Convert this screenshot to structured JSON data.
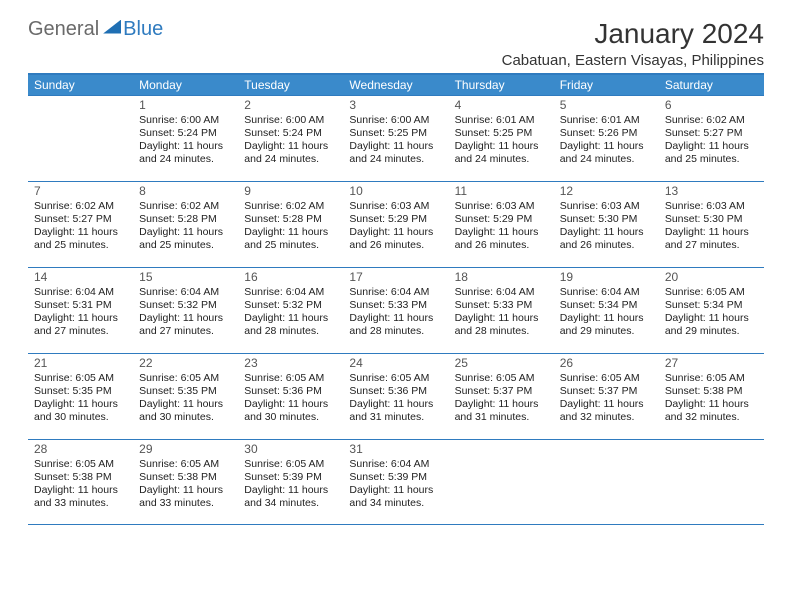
{
  "logo": {
    "part1": "General",
    "part2": "Blue"
  },
  "title": "January 2024",
  "location": "Cabatuan, Eastern Visayas, Philippines",
  "colors": {
    "header_bg": "#3a8acb",
    "border": "#2f7bbf",
    "logo_gray": "#6a6a6a",
    "logo_blue": "#2f7bbf",
    "text": "#222222"
  },
  "dow": [
    "Sunday",
    "Monday",
    "Tuesday",
    "Wednesday",
    "Thursday",
    "Friday",
    "Saturday"
  ],
  "weeks": [
    [
      {
        "n": "",
        "sr": "",
        "ss": "",
        "d1": "",
        "d2": ""
      },
      {
        "n": "1",
        "sr": "Sunrise: 6:00 AM",
        "ss": "Sunset: 5:24 PM",
        "d1": "Daylight: 11 hours",
        "d2": "and 24 minutes."
      },
      {
        "n": "2",
        "sr": "Sunrise: 6:00 AM",
        "ss": "Sunset: 5:24 PM",
        "d1": "Daylight: 11 hours",
        "d2": "and 24 minutes."
      },
      {
        "n": "3",
        "sr": "Sunrise: 6:00 AM",
        "ss": "Sunset: 5:25 PM",
        "d1": "Daylight: 11 hours",
        "d2": "and 24 minutes."
      },
      {
        "n": "4",
        "sr": "Sunrise: 6:01 AM",
        "ss": "Sunset: 5:25 PM",
        "d1": "Daylight: 11 hours",
        "d2": "and 24 minutes."
      },
      {
        "n": "5",
        "sr": "Sunrise: 6:01 AM",
        "ss": "Sunset: 5:26 PM",
        "d1": "Daylight: 11 hours",
        "d2": "and 24 minutes."
      },
      {
        "n": "6",
        "sr": "Sunrise: 6:02 AM",
        "ss": "Sunset: 5:27 PM",
        "d1": "Daylight: 11 hours",
        "d2": "and 25 minutes."
      }
    ],
    [
      {
        "n": "7",
        "sr": "Sunrise: 6:02 AM",
        "ss": "Sunset: 5:27 PM",
        "d1": "Daylight: 11 hours",
        "d2": "and 25 minutes."
      },
      {
        "n": "8",
        "sr": "Sunrise: 6:02 AM",
        "ss": "Sunset: 5:28 PM",
        "d1": "Daylight: 11 hours",
        "d2": "and 25 minutes."
      },
      {
        "n": "9",
        "sr": "Sunrise: 6:02 AM",
        "ss": "Sunset: 5:28 PM",
        "d1": "Daylight: 11 hours",
        "d2": "and 25 minutes."
      },
      {
        "n": "10",
        "sr": "Sunrise: 6:03 AM",
        "ss": "Sunset: 5:29 PM",
        "d1": "Daylight: 11 hours",
        "d2": "and 26 minutes."
      },
      {
        "n": "11",
        "sr": "Sunrise: 6:03 AM",
        "ss": "Sunset: 5:29 PM",
        "d1": "Daylight: 11 hours",
        "d2": "and 26 minutes."
      },
      {
        "n": "12",
        "sr": "Sunrise: 6:03 AM",
        "ss": "Sunset: 5:30 PM",
        "d1": "Daylight: 11 hours",
        "d2": "and 26 minutes."
      },
      {
        "n": "13",
        "sr": "Sunrise: 6:03 AM",
        "ss": "Sunset: 5:30 PM",
        "d1": "Daylight: 11 hours",
        "d2": "and 27 minutes."
      }
    ],
    [
      {
        "n": "14",
        "sr": "Sunrise: 6:04 AM",
        "ss": "Sunset: 5:31 PM",
        "d1": "Daylight: 11 hours",
        "d2": "and 27 minutes."
      },
      {
        "n": "15",
        "sr": "Sunrise: 6:04 AM",
        "ss": "Sunset: 5:32 PM",
        "d1": "Daylight: 11 hours",
        "d2": "and 27 minutes."
      },
      {
        "n": "16",
        "sr": "Sunrise: 6:04 AM",
        "ss": "Sunset: 5:32 PM",
        "d1": "Daylight: 11 hours",
        "d2": "and 28 minutes."
      },
      {
        "n": "17",
        "sr": "Sunrise: 6:04 AM",
        "ss": "Sunset: 5:33 PM",
        "d1": "Daylight: 11 hours",
        "d2": "and 28 minutes."
      },
      {
        "n": "18",
        "sr": "Sunrise: 6:04 AM",
        "ss": "Sunset: 5:33 PM",
        "d1": "Daylight: 11 hours",
        "d2": "and 28 minutes."
      },
      {
        "n": "19",
        "sr": "Sunrise: 6:04 AM",
        "ss": "Sunset: 5:34 PM",
        "d1": "Daylight: 11 hours",
        "d2": "and 29 minutes."
      },
      {
        "n": "20",
        "sr": "Sunrise: 6:05 AM",
        "ss": "Sunset: 5:34 PM",
        "d1": "Daylight: 11 hours",
        "d2": "and 29 minutes."
      }
    ],
    [
      {
        "n": "21",
        "sr": "Sunrise: 6:05 AM",
        "ss": "Sunset: 5:35 PM",
        "d1": "Daylight: 11 hours",
        "d2": "and 30 minutes."
      },
      {
        "n": "22",
        "sr": "Sunrise: 6:05 AM",
        "ss": "Sunset: 5:35 PM",
        "d1": "Daylight: 11 hours",
        "d2": "and 30 minutes."
      },
      {
        "n": "23",
        "sr": "Sunrise: 6:05 AM",
        "ss": "Sunset: 5:36 PM",
        "d1": "Daylight: 11 hours",
        "d2": "and 30 minutes."
      },
      {
        "n": "24",
        "sr": "Sunrise: 6:05 AM",
        "ss": "Sunset: 5:36 PM",
        "d1": "Daylight: 11 hours",
        "d2": "and 31 minutes."
      },
      {
        "n": "25",
        "sr": "Sunrise: 6:05 AM",
        "ss": "Sunset: 5:37 PM",
        "d1": "Daylight: 11 hours",
        "d2": "and 31 minutes."
      },
      {
        "n": "26",
        "sr": "Sunrise: 6:05 AM",
        "ss": "Sunset: 5:37 PM",
        "d1": "Daylight: 11 hours",
        "d2": "and 32 minutes."
      },
      {
        "n": "27",
        "sr": "Sunrise: 6:05 AM",
        "ss": "Sunset: 5:38 PM",
        "d1": "Daylight: 11 hours",
        "d2": "and 32 minutes."
      }
    ],
    [
      {
        "n": "28",
        "sr": "Sunrise: 6:05 AM",
        "ss": "Sunset: 5:38 PM",
        "d1": "Daylight: 11 hours",
        "d2": "and 33 minutes."
      },
      {
        "n": "29",
        "sr": "Sunrise: 6:05 AM",
        "ss": "Sunset: 5:38 PM",
        "d1": "Daylight: 11 hours",
        "d2": "and 33 minutes."
      },
      {
        "n": "30",
        "sr": "Sunrise: 6:05 AM",
        "ss": "Sunset: 5:39 PM",
        "d1": "Daylight: 11 hours",
        "d2": "and 34 minutes."
      },
      {
        "n": "31",
        "sr": "Sunrise: 6:04 AM",
        "ss": "Sunset: 5:39 PM",
        "d1": "Daylight: 11 hours",
        "d2": "and 34 minutes."
      },
      {
        "n": "",
        "sr": "",
        "ss": "",
        "d1": "",
        "d2": ""
      },
      {
        "n": "",
        "sr": "",
        "ss": "",
        "d1": "",
        "d2": ""
      },
      {
        "n": "",
        "sr": "",
        "ss": "",
        "d1": "",
        "d2": ""
      }
    ]
  ]
}
